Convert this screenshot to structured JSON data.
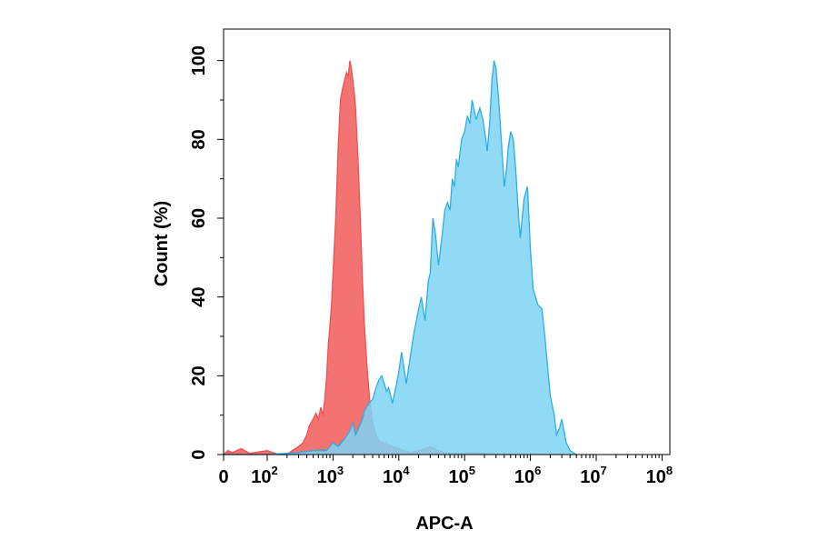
{
  "chart_data": {
    "type": "area",
    "xlabel": "APC-A",
    "ylabel": "Count  (%)",
    "xscale": "log",
    "xlim": [
      0,
      100000000
    ],
    "ylim": [
      0,
      108
    ],
    "grid": false,
    "x_ticks": [
      {
        "value": 0,
        "base": "0",
        "exp": ""
      },
      {
        "value": 100,
        "base": "10",
        "exp": "2"
      },
      {
        "value": 1000,
        "base": "10",
        "exp": "3"
      },
      {
        "value": 10000,
        "base": "10",
        "exp": "4"
      },
      {
        "value": 100000,
        "base": "10",
        "exp": "5"
      },
      {
        "value": 1000000,
        "base": "10",
        "exp": "6"
      },
      {
        "value": 10000000,
        "base": "10",
        "exp": "7"
      },
      {
        "value": 100000000,
        "base": "10",
        "exp": "8"
      }
    ],
    "y_ticks": [
      0,
      20,
      40,
      60,
      80,
      100
    ],
    "series": [
      {
        "color": "#f25050",
        "fill": "#f26a6a",
        "x": [
          0,
          10,
          20,
          40,
          60,
          100,
          150,
          200,
          240,
          300,
          350,
          400,
          430,
          460,
          500,
          550,
          600,
          650,
          700,
          750,
          800,
          850,
          900,
          950,
          1000,
          1100,
          1200,
          1300,
          1400,
          1500,
          1600,
          1700,
          1800,
          1900,
          2000,
          2100,
          2200,
          2400,
          2600,
          2800,
          3000,
          3300,
          3600,
          4000,
          4500,
          5000,
          6000,
          7000,
          8000,
          10000,
          12000,
          15000,
          20000,
          25000,
          30000,
          40000,
          50000,
          70000,
          100000,
          150000,
          200000,
          300000,
          500000
        ],
        "values": [
          0,
          1,
          0.5,
          1.5,
          0.3,
          1,
          0,
          0,
          1,
          2,
          3,
          5,
          7,
          8,
          9,
          10.5,
          9,
          12,
          10,
          14,
          20,
          28,
          33,
          38,
          46,
          60,
          78,
          90,
          93,
          95,
          97,
          96,
          100,
          98,
          95,
          92,
          88,
          75,
          60,
          44,
          33,
          22,
          14,
          8,
          5,
          3.5,
          3,
          2.5,
          2,
          1.5,
          1,
          0.5,
          1,
          1.5,
          2,
          1,
          0.5,
          0.2,
          0.3,
          0.5,
          0.2,
          0.1,
          0
        ]
      },
      {
        "color": "#2eaee0",
        "fill": "#7dd4f5",
        "x": [
          0,
          10,
          50,
          100,
          300,
          500,
          800,
          1000,
          1200,
          1500,
          1800,
          2000,
          2200,
          2500,
          2800,
          3000,
          3500,
          4000,
          4500,
          5000,
          5500,
          6000,
          6500,
          7000,
          7500,
          8000,
          9000,
          10000,
          11000,
          12000,
          13000,
          15000,
          17000,
          19000,
          20000,
          22000,
          25000,
          28000,
          30000,
          33000,
          36000,
          40000,
          45000,
          50000,
          55000,
          60000,
          65000,
          70000,
          75000,
          80000,
          90000,
          100000,
          110000,
          120000,
          130000,
          150000,
          170000,
          190000,
          210000,
          220000,
          240000,
          260000,
          280000,
          300000,
          330000,
          360000,
          400000,
          430000,
          460000,
          500000,
          550000,
          600000,
          650000,
          700000,
          800000,
          900000,
          1000000,
          1100000,
          1300000,
          1500000,
          1700000,
          2000000,
          2300000,
          2500000,
          2800000,
          3000000,
          3500000,
          4000000,
          5000000
        ],
        "values": [
          0,
          0,
          0,
          0,
          0.5,
          1,
          1,
          3,
          2,
          4,
          6,
          8,
          5,
          7,
          9,
          11,
          13,
          14,
          17,
          19,
          20,
          18,
          16,
          17,
          15,
          13,
          17,
          21,
          26,
          22,
          18,
          25,
          31,
          35,
          37,
          40,
          34,
          44,
          46,
          60,
          56,
          48,
          55,
          62,
          64,
          62,
          70,
          68,
          75,
          73,
          80,
          82,
          86,
          84,
          90,
          85,
          88,
          85,
          80,
          77,
          84,
          95,
          100,
          98,
          90,
          80,
          68,
          72,
          78,
          82,
          80,
          72,
          62,
          55,
          65,
          68,
          52,
          42,
          38,
          37,
          28,
          15,
          10,
          5,
          7,
          9,
          3,
          1,
          0
        ]
      }
    ]
  }
}
